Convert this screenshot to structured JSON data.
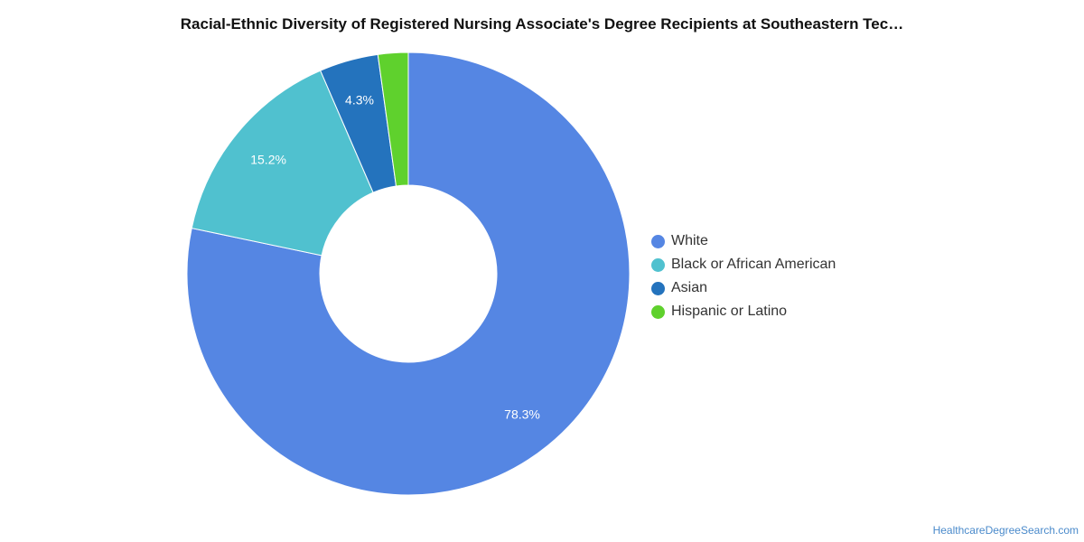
{
  "title": "Racial-Ethnic Diversity of Registered Nursing Associate's Degree Recipients at Southeastern Tec…",
  "source_link": "HealthcareDegreeSearch.com",
  "chart_data": {
    "type": "pie",
    "title": "Racial-Ethnic Diversity of Registered Nursing Associate's Degree Recipients at Southeastern Tec…",
    "donut": true,
    "legend_position": "right",
    "categories": [
      "White",
      "Black or African American",
      "Asian",
      "Hispanic or Latino"
    ],
    "values": [
      78.3,
      15.2,
      4.3,
      2.2
    ],
    "labels": [
      "78.3%",
      "15.2%",
      "4.3%",
      ""
    ],
    "colors": [
      "#5586e3",
      "#50c1cf",
      "#2473bd",
      "#5fd12d"
    ]
  }
}
